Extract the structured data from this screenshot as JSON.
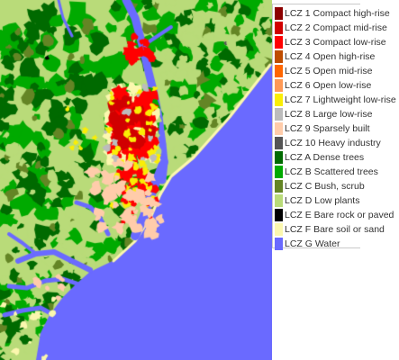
{
  "map": {
    "colors": {
      "lcz1": "#8c0000",
      "lcz2": "#d10000",
      "lcz3": "#ff0000",
      "lcz4": "#bf4d00",
      "lcz5": "#ff6600",
      "lcz6": "#ff9955",
      "lcz7": "#faee05",
      "lcz8": "#bcbcbc",
      "lcz9": "#ffccaa",
      "lcz10": "#555555",
      "lczA": "#006a00",
      "lczB": "#00aa00",
      "lczC": "#648525",
      "lczD": "#b9db79",
      "lczE": "#000000",
      "lczF": "#fbf7ae",
      "lczG": "#6a6aff"
    }
  },
  "legend": {
    "items": [
      {
        "label": "LCZ 1 Compact high-rise",
        "color": "#8c0000"
      },
      {
        "label": "LCZ 2 Compact mid-rise",
        "color": "#d10000"
      },
      {
        "label": "LCZ 3 Compact low-rise",
        "color": "#ff0000"
      },
      {
        "label": "LCZ 4 Open high-rise",
        "color": "#bf4d00"
      },
      {
        "label": "LCZ 5 Open mid-rise",
        "color": "#ff6600"
      },
      {
        "label": "LCZ 6 Open low-rise",
        "color": "#ff9955"
      },
      {
        "label": "LCZ 7 Lightweight low-rise",
        "color": "#faee05"
      },
      {
        "label": "LCZ 8 Large low-rise",
        "color": "#bcbcbc"
      },
      {
        "label": "LCZ 9 Sparsely built",
        "color": "#ffccaa"
      },
      {
        "label": "LCZ 10 Heavy industry",
        "color": "#555555"
      },
      {
        "label": "LCZ A Dense trees",
        "color": "#006a00"
      },
      {
        "label": "LCZ B Scattered trees",
        "color": "#00aa00"
      },
      {
        "label": "LCZ C Bush, scrub",
        "color": "#648525"
      },
      {
        "label": "LCZ D Low plants",
        "color": "#b9db79"
      },
      {
        "label": "LCZ E Bare rock or paved",
        "color": "#000000"
      },
      {
        "label": "LCZ F Bare soil or sand",
        "color": "#fbf7ae"
      },
      {
        "label": "LCZ G Water",
        "color": "#6a6aff"
      }
    ]
  }
}
